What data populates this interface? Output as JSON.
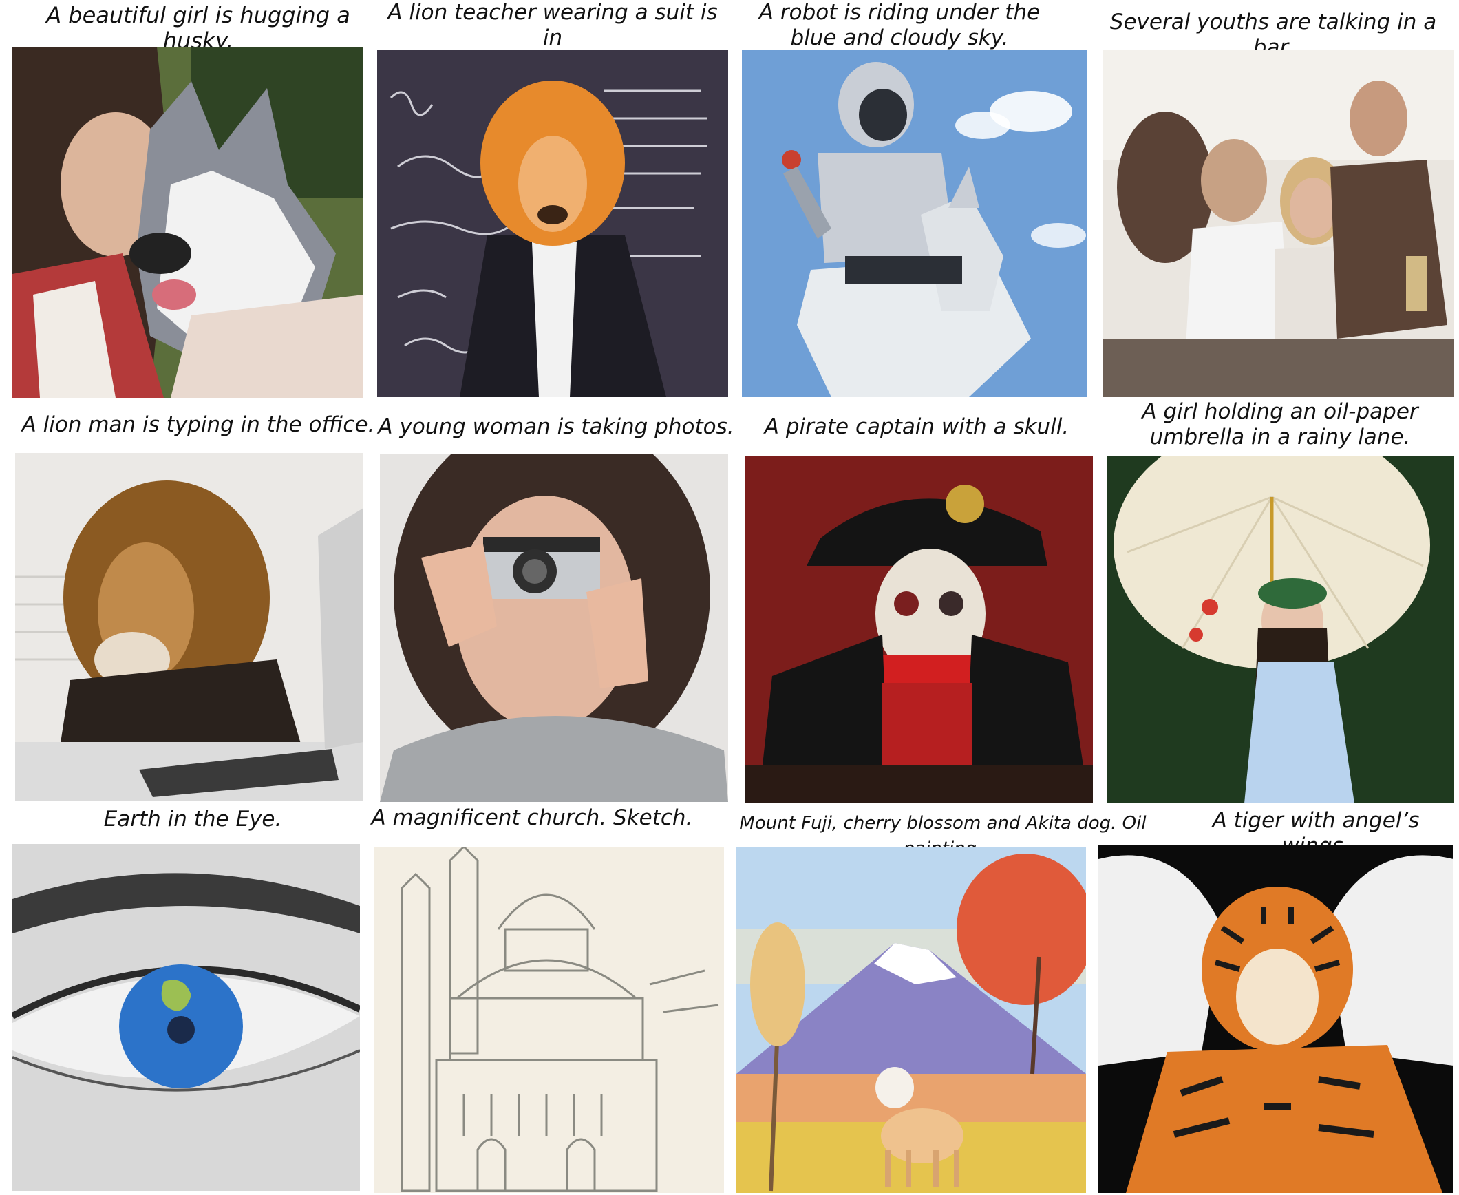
{
  "captions": [
    "A beautiful girl is hugging a husky.",
    "A lion teacher wearing a suit is in\nfront of a blackboard.",
    "A robot is riding under the\nblue and cloudy sky.",
    "Several youths are talking in a bar.",
    "A lion man is typing in the office.",
    "A young woman is taking photos.",
    "A pirate captain with a skull.",
    "A girl holding an oil-paper\numbrella in a rainy lane.",
    "Earth in the Eye.",
    "A magnificent church. Sketch.",
    "Mount Fuji, cherry blossom and Akita dog. Oil painting.",
    "A tiger with angel’s wings."
  ],
  "images": [
    {
      "subject": "girl-hugging-husky",
      "palette": [
        "#5a6b3a",
        "#d9b49a",
        "#3b2a22",
        "#8d8f96",
        "#f1f1f1"
      ]
    },
    {
      "subject": "lion-teacher-blackboard",
      "palette": [
        "#3b3646",
        "#e88a2c",
        "#1d1c24",
        "#f2f2f2"
      ]
    },
    {
      "subject": "robot-riding-horse",
      "palette": [
        "#6f9fd6",
        "#c9ced6",
        "#2b2f36",
        "#ffffff"
      ]
    },
    {
      "subject": "youths-in-bar",
      "palette": [
        "#eae6e0",
        "#c7a184",
        "#5b4336",
        "#d8d0c6"
      ]
    },
    {
      "subject": "lion-man-typing",
      "palette": [
        "#ebe9e6",
        "#9c6a2e",
        "#2a221d",
        "#cfcfcf"
      ]
    },
    {
      "subject": "woman-taking-photo",
      "palette": [
        "#e6e4e2",
        "#3a2b25",
        "#e2b7a0",
        "#a4a7aa"
      ]
    },
    {
      "subject": "pirate-captain-skull",
      "palette": [
        "#7c1d1b",
        "#141414",
        "#d21f20",
        "#e9e2d6"
      ]
    },
    {
      "subject": "girl-oil-paper-umbrella",
      "palette": [
        "#1f3a1f",
        "#efe8d3",
        "#b9d3ee",
        "#2a1e16"
      ]
    },
    {
      "subject": "earth-in-eye",
      "palette": [
        "#d8d8d8",
        "#2a2a2a",
        "#2c73c9",
        "#9cbf53"
      ]
    },
    {
      "subject": "church-sketch",
      "palette": [
        "#f3eee3",
        "#8a8a82"
      ]
    },
    {
      "subject": "fuji-akita-oil-painting",
      "palette": [
        "#bcd7ef",
        "#8a83c5",
        "#e05a3a",
        "#e9c37e"
      ]
    },
    {
      "subject": "tiger-angel-wings",
      "palette": [
        "#0b0b0b",
        "#f0f0f0",
        "#e07a26",
        "#1a1a1a"
      ]
    }
  ]
}
